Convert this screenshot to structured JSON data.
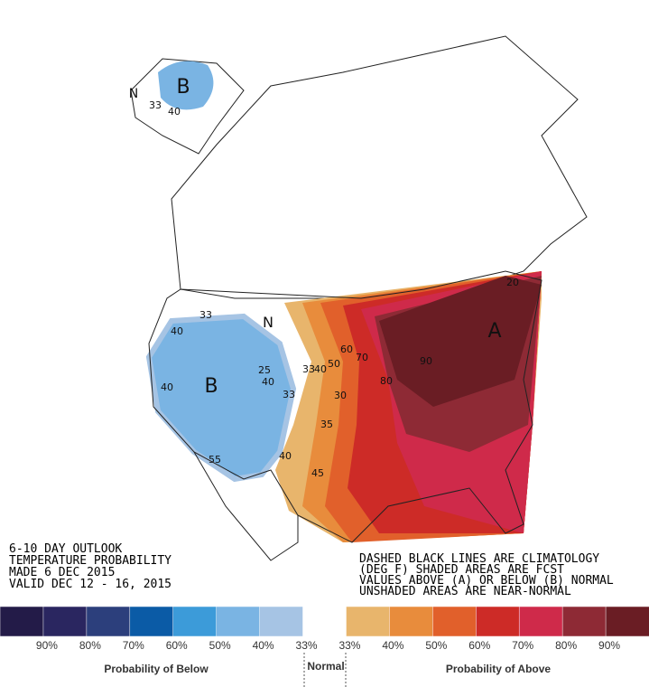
{
  "header": {
    "lines": [
      "6-10 DAY OUTLOOK",
      "TEMPERATURE PROBABILITY",
      "MADE  6 DEC 2015",
      "VALID  DEC 12 - 16, 2015"
    ]
  },
  "notes": {
    "lines": [
      "DASHED BLACK LINES ARE CLIMATOLOGY",
      "(DEG F) SHADED AREAS ARE FCST",
      "VALUES ABOVE (A) OR BELOW (B) NORMAL",
      "UNSHADED AREAS ARE NEAR-NORMAL"
    ]
  },
  "map_labels": [
    "B",
    "N",
    "33",
    "40",
    "B",
    "N",
    "A",
    "40",
    "40",
    "33",
    "25",
    "40",
    "33",
    "55",
    "33",
    "40",
    "50",
    "60",
    "70",
    "80",
    "90",
    "40",
    "45",
    "35",
    "30",
    "20"
  ],
  "legend": {
    "colors": [
      "#231b48",
      "#2a2660",
      "#2c3f7c",
      "#0b5ba6",
      "#3c9bd9",
      "#7ab4e3",
      "#a6c4e4",
      "#ffffff",
      "#e8b56c",
      "#e88c3c",
      "#e1602b",
      "#cd2b27",
      "#cf2a4a",
      "#8e2a35",
      "#6a1d24"
    ],
    "labels": [
      "90%",
      "80%",
      "70%",
      "60%",
      "50%",
      "40%",
      "33%",
      "33%",
      "40%",
      "50%",
      "60%",
      "70%",
      "80%",
      "90%"
    ],
    "below": "Probability of Below",
    "normal": "Normal",
    "above": "Probability of Above"
  }
}
